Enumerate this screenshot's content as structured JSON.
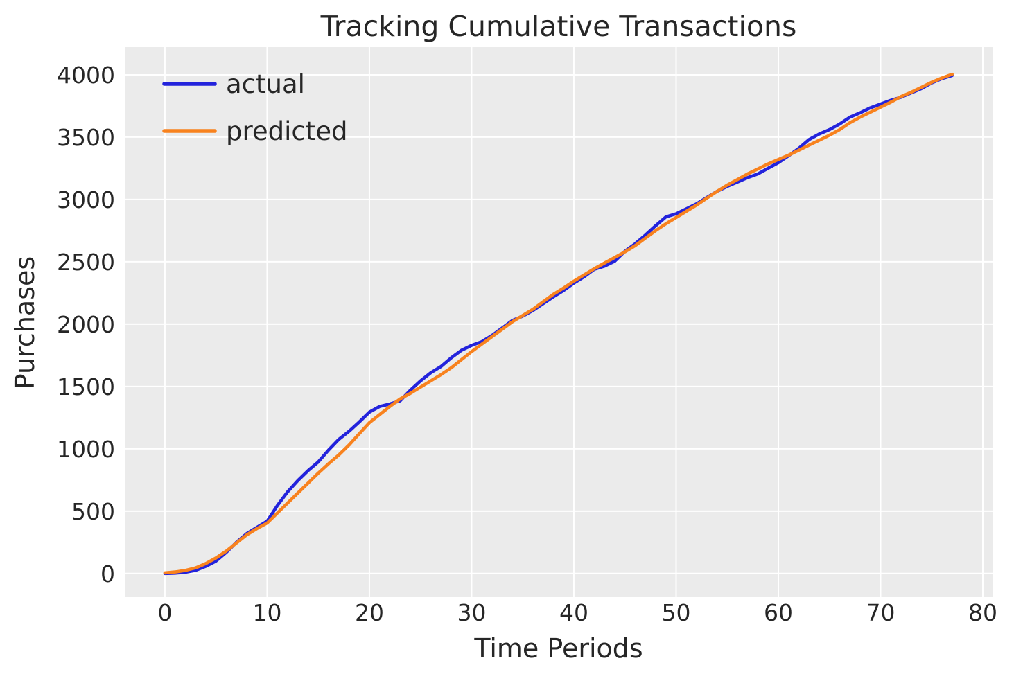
{
  "figure": {
    "background": "#ffffff"
  },
  "chart_data": {
    "type": "line",
    "title": "Tracking Cumulative Transactions",
    "xlabel": "Time Periods",
    "ylabel": "Purchases",
    "x": [
      0,
      1,
      2,
      3,
      4,
      5,
      6,
      7,
      8,
      9,
      10,
      11,
      12,
      13,
      14,
      15,
      16,
      17,
      18,
      19,
      20,
      21,
      22,
      23,
      24,
      25,
      26,
      27,
      28,
      29,
      30,
      31,
      32,
      33,
      34,
      35,
      36,
      37,
      38,
      39,
      40,
      41,
      42,
      43,
      44,
      45,
      46,
      47,
      48,
      49,
      50,
      51,
      52,
      53,
      54,
      55,
      56,
      57,
      58,
      59,
      60,
      61,
      62,
      63,
      64,
      65,
      66,
      67,
      68,
      69,
      70,
      71,
      72,
      73,
      74,
      75,
      76,
      77
    ],
    "series": [
      {
        "name": "actual",
        "color": "#2323dc",
        "values": [
          0,
          3,
          10,
          25,
          58,
          100,
          170,
          250,
          320,
          370,
          420,
          545,
          655,
          745,
          825,
          895,
          990,
          1075,
          1140,
          1215,
          1295,
          1340,
          1360,
          1385,
          1470,
          1545,
          1610,
          1660,
          1730,
          1790,
          1830,
          1860,
          1910,
          1970,
          2030,
          2065,
          2110,
          2165,
          2220,
          2270,
          2330,
          2380,
          2440,
          2465,
          2505,
          2585,
          2645,
          2715,
          2790,
          2860,
          2885,
          2925,
          2965,
          3015,
          3065,
          3105,
          3140,
          3175,
          3205,
          3250,
          3295,
          3350,
          3410,
          3480,
          3525,
          3560,
          3605,
          3660,
          3695,
          3735,
          3765,
          3795,
          3820,
          3855,
          3890,
          3935,
          3970,
          3995
        ]
      },
      {
        "name": "predicted",
        "color": "#f8821e",
        "values": [
          5,
          12,
          25,
          45,
          80,
          125,
          180,
          245,
          310,
          360,
          405,
          485,
          565,
          645,
          725,
          805,
          880,
          950,
          1030,
          1120,
          1210,
          1275,
          1340,
          1400,
          1445,
          1495,
          1545,
          1595,
          1650,
          1715,
          1780,
          1840,
          1900,
          1960,
          2020,
          2070,
          2120,
          2180,
          2240,
          2290,
          2345,
          2395,
          2445,
          2490,
          2535,
          2580,
          2630,
          2690,
          2750,
          2805,
          2855,
          2905,
          2955,
          3010,
          3065,
          3115,
          3160,
          3205,
          3245,
          3285,
          3320,
          3355,
          3395,
          3435,
          3475,
          3515,
          3560,
          3615,
          3660,
          3700,
          3740,
          3780,
          3825,
          3860,
          3900,
          3940,
          3975,
          4005
        ]
      }
    ],
    "xticks": [
      0,
      10,
      20,
      30,
      40,
      50,
      60,
      70,
      80
    ],
    "yticks": [
      0,
      500,
      1000,
      1500,
      2000,
      2500,
      3000,
      3500,
      4000
    ],
    "xlim": [
      -3.93,
      80.95
    ],
    "ylim": [
      -190,
      4222
    ],
    "grid": true,
    "legend": {
      "position": "upper left",
      "entries": [
        "actual",
        "predicted"
      ]
    },
    "styles": {
      "plot_bg": "#ebebeb",
      "grid_color": "#ffffff",
      "text_color": "#262626",
      "line_width": 4.6
    }
  }
}
